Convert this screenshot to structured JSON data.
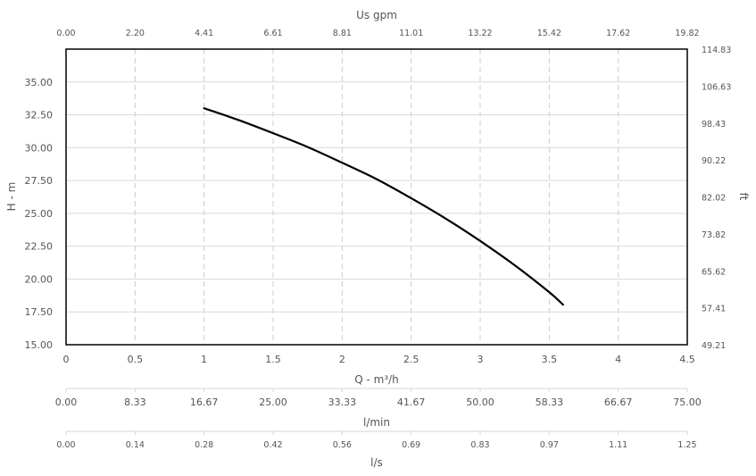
{
  "chart_data": {
    "type": "line",
    "series": [
      {
        "x": [
          1.0,
          1.25,
          1.5,
          1.75,
          2.0,
          2.25,
          2.5,
          2.75,
          3.0,
          3.25,
          3.5,
          3.6
        ],
        "y": [
          33.0,
          32.1,
          31.1,
          30.05,
          28.85,
          27.6,
          26.15,
          24.6,
          22.9,
          21.05,
          19.0,
          18.05
        ]
      }
    ],
    "grid": true,
    "primary_x": {
      "label": "Q - m³/h",
      "range": [
        0,
        4.5
      ],
      "ticks": [
        "0",
        "0.5",
        "1",
        "1.5",
        "2",
        "2.5",
        "3",
        "3.5",
        "4",
        "4.5"
      ]
    },
    "primary_y": {
      "label": "H - m",
      "range": [
        15,
        37.5
      ],
      "ticks": [
        "15.00",
        "17.50",
        "20.00",
        "22.50",
        "25.00",
        "27.50",
        "30.00",
        "32.50",
        "35.00"
      ]
    },
    "top_x": {
      "label": "Us gpm",
      "ticks": [
        "0.00",
        "2.20",
        "4.41",
        "6.61",
        "8.81",
        "11.01",
        "13.22",
        "15.42",
        "17.62",
        "19.82"
      ]
    },
    "right_y": {
      "label": "ft",
      "ticks": [
        "49.21",
        "57.41",
        "65.62",
        "73.82",
        "82.02",
        "90.22",
        "98.43",
        "106.63",
        "114.83"
      ]
    },
    "extra_axes": [
      {
        "label": "l/min",
        "ticks": [
          "0.00",
          "8.33",
          "16.67",
          "25.00",
          "33.33",
          "41.67",
          "50.00",
          "58.33",
          "66.67",
          "75.00"
        ]
      },
      {
        "label": "l/s",
        "ticks": [
          "0.00",
          "0.14",
          "0.28",
          "0.42",
          "0.56",
          "0.69",
          "0.83",
          "0.97",
          "1.11",
          "1.25"
        ]
      }
    ]
  },
  "colors": {
    "curve": "#000000",
    "plot_border": "#000000",
    "grid_vertical": "#cccccc",
    "grid_horizontal": "#d9d9d9",
    "axis_text": "#555555",
    "extra_axis_line": "#c7dedd"
  }
}
